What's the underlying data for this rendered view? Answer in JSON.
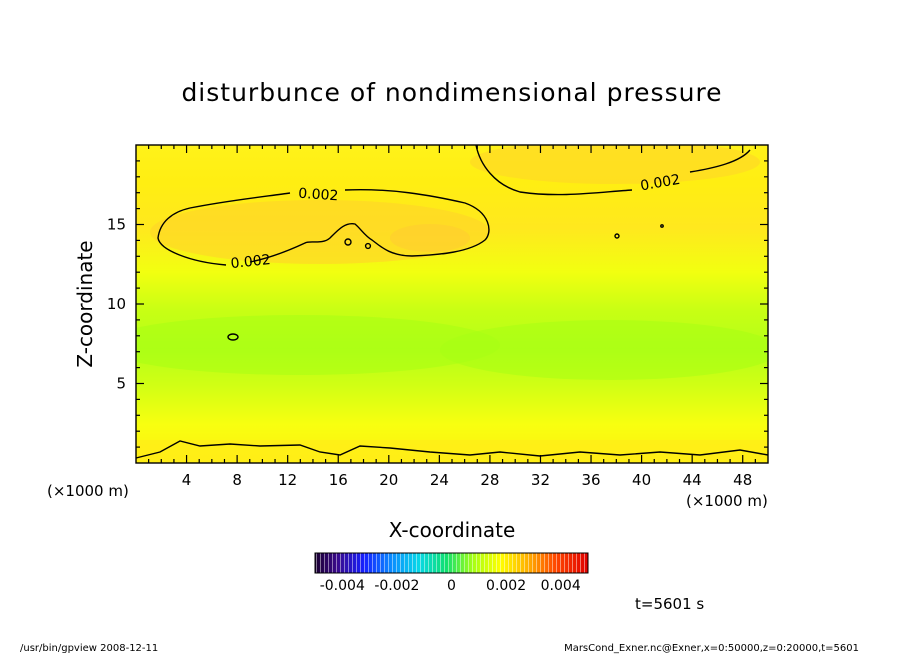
{
  "chart_data": {
    "type": "heatmap",
    "title": "disturbunce of nondimensional pressure",
    "xlabel": "X-coordinate",
    "ylabel": "Z-coordinate",
    "x_unit": "(×1000 m)",
    "y_unit": "(×1000 m)",
    "xlim": [
      0,
      50
    ],
    "ylim": [
      0,
      20
    ],
    "x_ticks": [
      4,
      8,
      12,
      16,
      20,
      24,
      28,
      32,
      36,
      40,
      44,
      48
    ],
    "y_ticks": [
      5,
      10,
      15
    ],
    "contour_labels": [
      "0.002",
      "0.002",
      "0.002"
    ],
    "colorbar": {
      "range": [
        -0.005,
        0.005
      ],
      "tick_labels": [
        "-0.004",
        "-0.002",
        "0",
        "0.002",
        "0.004"
      ],
      "tick_values": [
        -0.004,
        -0.002,
        0,
        0.002,
        0.004
      ]
    },
    "regions": [
      {
        "z_range": [
          0,
          1.5
        ],
        "approx_value": 0.0018
      },
      {
        "z_range": [
          1.5,
          4
        ],
        "approx_value": 0.0012
      },
      {
        "z_range": [
          4,
          10
        ],
        "approx_value": 0.0006
      },
      {
        "z_range": [
          10,
          13
        ],
        "approx_value": 0.0011
      },
      {
        "z_range": [
          13,
          17
        ],
        "approx_value": 0.0022
      },
      {
        "z_range": [
          17,
          20
        ],
        "approx_value": 0.0015
      }
    ]
  },
  "time_label": "t=5601 s",
  "footer_left": "/usr/bin/gpview   2008-12-11",
  "footer_right": "MarsCond_Exner.nc@Exner,x=0:50000,z=0:20000,t=5601",
  "colors": {
    "yellow": "#ffff00",
    "orange_yellow": "#ffd21e",
    "lime": "#e6ff19",
    "green": "#a8ff14",
    "frame": "#000000"
  }
}
